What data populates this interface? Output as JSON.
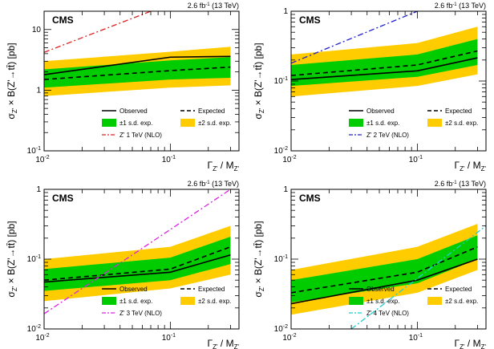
{
  "chart_data": [
    {
      "type": "area",
      "lumi_label": "2.6 fb",
      "lumi_sup": "-1",
      "lumi_energy": " (13 TeV)",
      "cms_label": "CMS",
      "ylabel": "σ_Z' × B(Z'→tt̄) [pb]",
      "xlabel": "Γ_Z' / M_Z'",
      "xscale": "log",
      "yscale": "log",
      "xlim": [
        0.01,
        0.35
      ],
      "ylim": [
        0.1,
        20
      ],
      "x_ticks": [
        {
          "v": 0.01,
          "b": "10",
          "e": "-2"
        },
        {
          "v": 0.1,
          "b": "10",
          "e": "-1"
        }
      ],
      "y_ticks": [
        {
          "v": 0.1,
          "b": "10",
          "e": "-1"
        },
        {
          "v": 1,
          "b": "1",
          "e": ""
        },
        {
          "v": 10,
          "b": "10",
          "e": ""
        }
      ],
      "x": [
        0.01,
        0.1,
        0.3
      ],
      "observed": [
        1.8,
        3.5,
        3.6
      ],
      "expected": [
        1.5,
        2.1,
        2.4
      ],
      "band_1sd": {
        "low": [
          1.1,
          1.5,
          1.6
        ],
        "high": [
          2.2,
          3.1,
          3.5
        ]
      },
      "band_2sd": {
        "low": [
          0.8,
          1.1,
          1.2
        ],
        "high": [
          3.0,
          4.3,
          5.2
        ]
      },
      "theory": {
        "name": "Z' 1 TeV (NLO)",
        "x": [
          0.01,
          0.07
        ],
        "y": [
          4.2,
          20
        ],
        "color": "#dd2222",
        "dash": "7,3,2,3"
      },
      "legend": {
        "observed": "Observed",
        "expected": "Expected",
        "band_1sd": "±1 s.d. exp.",
        "band_2sd": "±2 s.d. exp."
      }
    },
    {
      "type": "area",
      "lumi_label": "2.6 fb",
      "lumi_sup": "-1",
      "lumi_energy": " (13 TeV)",
      "cms_label": "CMS",
      "ylabel": "σ_Z' × B(Z'→tt̄) [pb]",
      "xlabel": "Γ_Z' / M_Z'",
      "xscale": "log",
      "yscale": "log",
      "xlim": [
        0.01,
        0.35
      ],
      "ylim": [
        0.01,
        1
      ],
      "x_ticks": [
        {
          "v": 0.01,
          "b": "10",
          "e": "-2"
        },
        {
          "v": 0.1,
          "b": "10",
          "e": "-1"
        }
      ],
      "y_ticks": [
        {
          "v": 0.01,
          "b": "10",
          "e": "-2"
        },
        {
          "v": 0.1,
          "b": "10",
          "e": "-1"
        },
        {
          "v": 1,
          "b": "1",
          "e": ""
        }
      ],
      "x": [
        0.01,
        0.1,
        0.3
      ],
      "observed": [
        0.105,
        0.14,
        0.215
      ],
      "expected": [
        0.12,
        0.17,
        0.27
      ],
      "band_1sd": {
        "low": [
          0.085,
          0.115,
          0.17
        ],
        "high": [
          0.17,
          0.24,
          0.4
        ]
      },
      "band_2sd": {
        "low": [
          0.06,
          0.085,
          0.125
        ],
        "high": [
          0.24,
          0.35,
          0.6
        ]
      },
      "theory": {
        "name": "Z' 2 TeV (NLO)",
        "x": [
          0.01,
          0.1
        ],
        "y": [
          0.18,
          1
        ],
        "color": "#2222cc",
        "dash": "7,3,2,3"
      },
      "legend": {
        "observed": "Observed",
        "expected": "Expected",
        "band_1sd": "±1 s.d. exp.",
        "band_2sd": "±2 s.d. exp."
      }
    },
    {
      "type": "area",
      "lumi_label": "2.6 fb",
      "lumi_sup": "-1",
      "lumi_energy": " (13 TeV)",
      "cms_label": "CMS",
      "ylabel": "σ_Z' × B(Z'→tt̄) [pb]",
      "xlabel": "Γ_Z' / M_Z'",
      "xscale": "log",
      "yscale": "log",
      "xlim": [
        0.01,
        0.35
      ],
      "ylim": [
        0.01,
        1
      ],
      "x_ticks": [
        {
          "v": 0.01,
          "b": "10",
          "e": "-2"
        },
        {
          "v": 0.1,
          "b": "10",
          "e": "-1"
        }
      ],
      "y_ticks": [
        {
          "v": 0.01,
          "b": "10",
          "e": "-2"
        },
        {
          "v": 0.1,
          "b": "10",
          "e": "-1"
        },
        {
          "v": 1,
          "b": "1",
          "e": ""
        }
      ],
      "x": [
        0.01,
        0.1,
        0.3
      ],
      "observed": [
        0.047,
        0.065,
        0.115
      ],
      "expected": [
        0.05,
        0.072,
        0.15
      ],
      "band_1sd": {
        "low": [
          0.035,
          0.05,
          0.085
        ],
        "high": [
          0.072,
          0.105,
          0.21
        ]
      },
      "band_2sd": {
        "low": [
          0.025,
          0.038,
          0.06
        ],
        "high": [
          0.1,
          0.15,
          0.3
        ]
      },
      "theory": {
        "name": "Z' 3 TeV (NLO)",
        "x": [
          0.01,
          0.3
        ],
        "y": [
          0.0165,
          1
        ],
        "color": "#dd22dd",
        "dash": "7,3,2,3"
      },
      "legend": {
        "observed": "Observed",
        "expected": "Expected",
        "band_1sd": "±1 s.d. exp.",
        "band_2sd": "±2 s.d. exp."
      }
    },
    {
      "type": "area",
      "lumi_label": "2.6 fb",
      "lumi_sup": "-1",
      "lumi_energy": " (13 TeV)",
      "cms_label": "CMS",
      "ylabel": "σ_Z' × B(Z'→tt̄) [pb]",
      "xlabel": "Γ_Z' / M_Z'",
      "xscale": "log",
      "yscale": "log",
      "xlim": [
        0.01,
        0.35
      ],
      "ylim": [
        0.01,
        1
      ],
      "x_ticks": [
        {
          "v": 0.01,
          "b": "10",
          "e": "-2"
        },
        {
          "v": 0.1,
          "b": "10",
          "e": "-1"
        }
      ],
      "y_ticks": [
        {
          "v": 0.01,
          "b": "10",
          "e": "-2"
        },
        {
          "v": 0.1,
          "b": "10",
          "e": "-1"
        },
        {
          "v": 1,
          "b": "1",
          "e": ""
        }
      ],
      "x": [
        0.01,
        0.1,
        0.3
      ],
      "observed": [
        0.023,
        0.05,
        0.1
      ],
      "expected": [
        0.033,
        0.065,
        0.15
      ],
      "band_1sd": {
        "low": [
          0.024,
          0.045,
          0.1
        ],
        "high": [
          0.05,
          0.1,
          0.22
        ]
      },
      "band_2sd": {
        "low": [
          0.016,
          0.033,
          0.07
        ],
        "high": [
          0.07,
          0.15,
          0.32
        ]
      },
      "theory": {
        "name": "Z' 4 TeV (NLO)",
        "x": [
          0.03,
          0.35
        ],
        "y": [
          0.01,
          0.3
        ],
        "color": "#22cccc",
        "dash": "7,3,2,3"
      },
      "legend": {
        "observed": "Observed",
        "expected": "Expected",
        "band_1sd": "±1 s.d. exp.",
        "band_2sd": "±2 s.d. exp."
      }
    }
  ],
  "colors": {
    "band_1sd": "#00cc00",
    "band_2sd": "#ffcc00",
    "line": "#000000"
  }
}
